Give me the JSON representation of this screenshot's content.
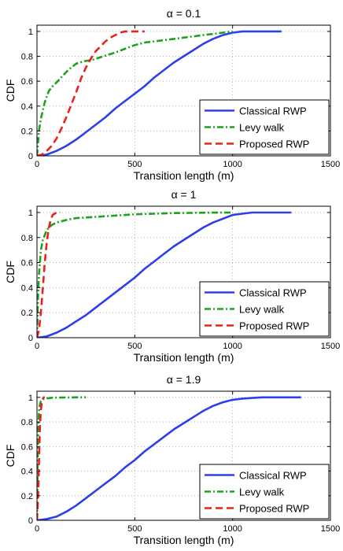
{
  "chart_data": [
    {
      "type": "line",
      "title": "α = 0.1",
      "xlabel": "Transition length (m)",
      "ylabel": "CDF",
      "xlim": [
        0,
        1500
      ],
      "ylim": [
        0,
        1.05
      ],
      "xticks": [
        0,
        500,
        1000,
        1500
      ],
      "yticks": [
        0,
        0.2,
        0.4,
        0.6,
        0.8,
        1
      ],
      "grid": true,
      "legend_position": "bottom-right",
      "series": [
        {
          "name": "Classical RWP",
          "color": "#2c3fe8",
          "style": "solid",
          "x": [
            0,
            50,
            100,
            150,
            200,
            250,
            300,
            350,
            400,
            450,
            500,
            550,
            600,
            650,
            700,
            750,
            800,
            850,
            900,
            950,
            1000,
            1050,
            1100,
            1150,
            1200,
            1250
          ],
          "y": [
            0,
            0.01,
            0.04,
            0.08,
            0.13,
            0.19,
            0.25,
            0.31,
            0.38,
            0.44,
            0.5,
            0.56,
            0.63,
            0.69,
            0.75,
            0.8,
            0.85,
            0.9,
            0.94,
            0.97,
            0.99,
            1.0,
            1.0,
            1.0,
            1.0,
            1.0
          ]
        },
        {
          "name": "Levy walk",
          "color": "#1fa01f",
          "style": "dashdot",
          "x": [
            0,
            10,
            20,
            40,
            60,
            80,
            100,
            130,
            160,
            200,
            240,
            280,
            320,
            360,
            400,
            450,
            500,
            550,
            600,
            650,
            700,
            750,
            800,
            850,
            900,
            950,
            1000
          ],
          "y": [
            0,
            0.2,
            0.3,
            0.43,
            0.52,
            0.56,
            0.59,
            0.64,
            0.69,
            0.74,
            0.76,
            0.77,
            0.79,
            0.81,
            0.83,
            0.86,
            0.89,
            0.91,
            0.92,
            0.93,
            0.94,
            0.95,
            0.96,
            0.97,
            0.98,
            0.99,
            1.0
          ]
        },
        {
          "name": "Proposed RWP",
          "color": "#e8221c",
          "style": "dashed",
          "x": [
            0,
            25,
            50,
            75,
            100,
            125,
            150,
            175,
            200,
            225,
            250,
            275,
            300,
            325,
            350,
            375,
            400,
            425,
            450,
            475,
            500,
            550
          ],
          "y": [
            0,
            0.01,
            0.04,
            0.08,
            0.14,
            0.22,
            0.31,
            0.41,
            0.51,
            0.62,
            0.71,
            0.78,
            0.84,
            0.88,
            0.92,
            0.95,
            0.97,
            0.99,
            1.0,
            1.0,
            1.0,
            1.0
          ]
        }
      ]
    },
    {
      "type": "line",
      "title": "α = 1",
      "xlabel": "Transition length (m)",
      "ylabel": "CDF",
      "xlim": [
        0,
        1500
      ],
      "ylim": [
        0,
        1.05
      ],
      "xticks": [
        0,
        500,
        1000,
        1500
      ],
      "yticks": [
        0,
        0.2,
        0.4,
        0.6,
        0.8,
        1
      ],
      "grid": true,
      "legend_position": "bottom-right",
      "series": [
        {
          "name": "Classical RWP",
          "color": "#2c3fe8",
          "style": "solid",
          "x": [
            0,
            50,
            100,
            150,
            200,
            250,
            300,
            350,
            400,
            450,
            500,
            550,
            600,
            650,
            700,
            750,
            800,
            850,
            900,
            950,
            1000,
            1050,
            1100,
            1150,
            1200,
            1250,
            1300
          ],
          "y": [
            0,
            0.01,
            0.04,
            0.08,
            0.13,
            0.18,
            0.24,
            0.3,
            0.36,
            0.42,
            0.48,
            0.55,
            0.61,
            0.67,
            0.73,
            0.78,
            0.83,
            0.88,
            0.92,
            0.95,
            0.98,
            0.99,
            1.0,
            1.0,
            1.0,
            1.0,
            1.0
          ]
        },
        {
          "name": "Levy walk",
          "color": "#1fa01f",
          "style": "dashdot",
          "x": [
            0,
            5,
            10,
            20,
            30,
            50,
            75,
            100,
            150,
            200,
            300,
            400,
            500,
            600,
            700,
            800,
            900,
            1000
          ],
          "y": [
            0,
            0.3,
            0.5,
            0.7,
            0.78,
            0.86,
            0.9,
            0.92,
            0.94,
            0.955,
            0.965,
            0.975,
            0.985,
            0.99,
            0.995,
            0.997,
            0.999,
            1.0
          ]
        },
        {
          "name": "Proposed RWP",
          "color": "#e8221c",
          "style": "dashed",
          "x": [
            0,
            10,
            20,
            30,
            40,
            50,
            60,
            70,
            80,
            90,
            100,
            110,
            120
          ],
          "y": [
            0,
            0.06,
            0.2,
            0.4,
            0.6,
            0.76,
            0.87,
            0.94,
            0.98,
            0.99,
            1.0,
            1.0,
            1.0
          ]
        }
      ]
    },
    {
      "type": "line",
      "title": "α = 1.9",
      "xlabel": "Transition length (m)",
      "ylabel": "CDF",
      "xlim": [
        0,
        1500
      ],
      "ylim": [
        0,
        1.05
      ],
      "xticks": [
        0,
        500,
        1000,
        1500
      ],
      "yticks": [
        0,
        0.2,
        0.4,
        0.6,
        0.8,
        1
      ],
      "grid": true,
      "legend_position": "bottom-right",
      "series": [
        {
          "name": "Classical RWP",
          "color": "#2c3fe8",
          "style": "solid",
          "x": [
            0,
            50,
            100,
            150,
            200,
            250,
            300,
            350,
            400,
            450,
            500,
            550,
            600,
            650,
            700,
            750,
            800,
            850,
            900,
            950,
            1000,
            1050,
            1100,
            1150,
            1200,
            1250,
            1300,
            1350
          ],
          "y": [
            0,
            0.01,
            0.03,
            0.07,
            0.12,
            0.18,
            0.24,
            0.3,
            0.36,
            0.43,
            0.49,
            0.56,
            0.62,
            0.68,
            0.74,
            0.79,
            0.84,
            0.89,
            0.93,
            0.96,
            0.98,
            0.99,
            0.995,
            1.0,
            1.0,
            1.0,
            1.0,
            1.0
          ]
        },
        {
          "name": "Levy walk",
          "color": "#1fa01f",
          "style": "dashdot",
          "x": [
            0,
            3,
            6,
            10,
            15,
            20,
            30,
            50,
            75,
            100,
            150,
            200,
            250
          ],
          "y": [
            0,
            0.4,
            0.7,
            0.88,
            0.94,
            0.97,
            0.985,
            0.992,
            0.996,
            0.998,
            0.999,
            1.0,
            1.0
          ]
        },
        {
          "name": "Proposed RWP",
          "color": "#e8221c",
          "style": "dashed",
          "x": [
            0,
            5,
            10,
            15,
            20,
            25,
            30,
            35,
            40
          ],
          "y": [
            0,
            0.15,
            0.45,
            0.75,
            0.9,
            0.96,
            0.99,
            1.0,
            1.0
          ]
        }
      ]
    }
  ]
}
